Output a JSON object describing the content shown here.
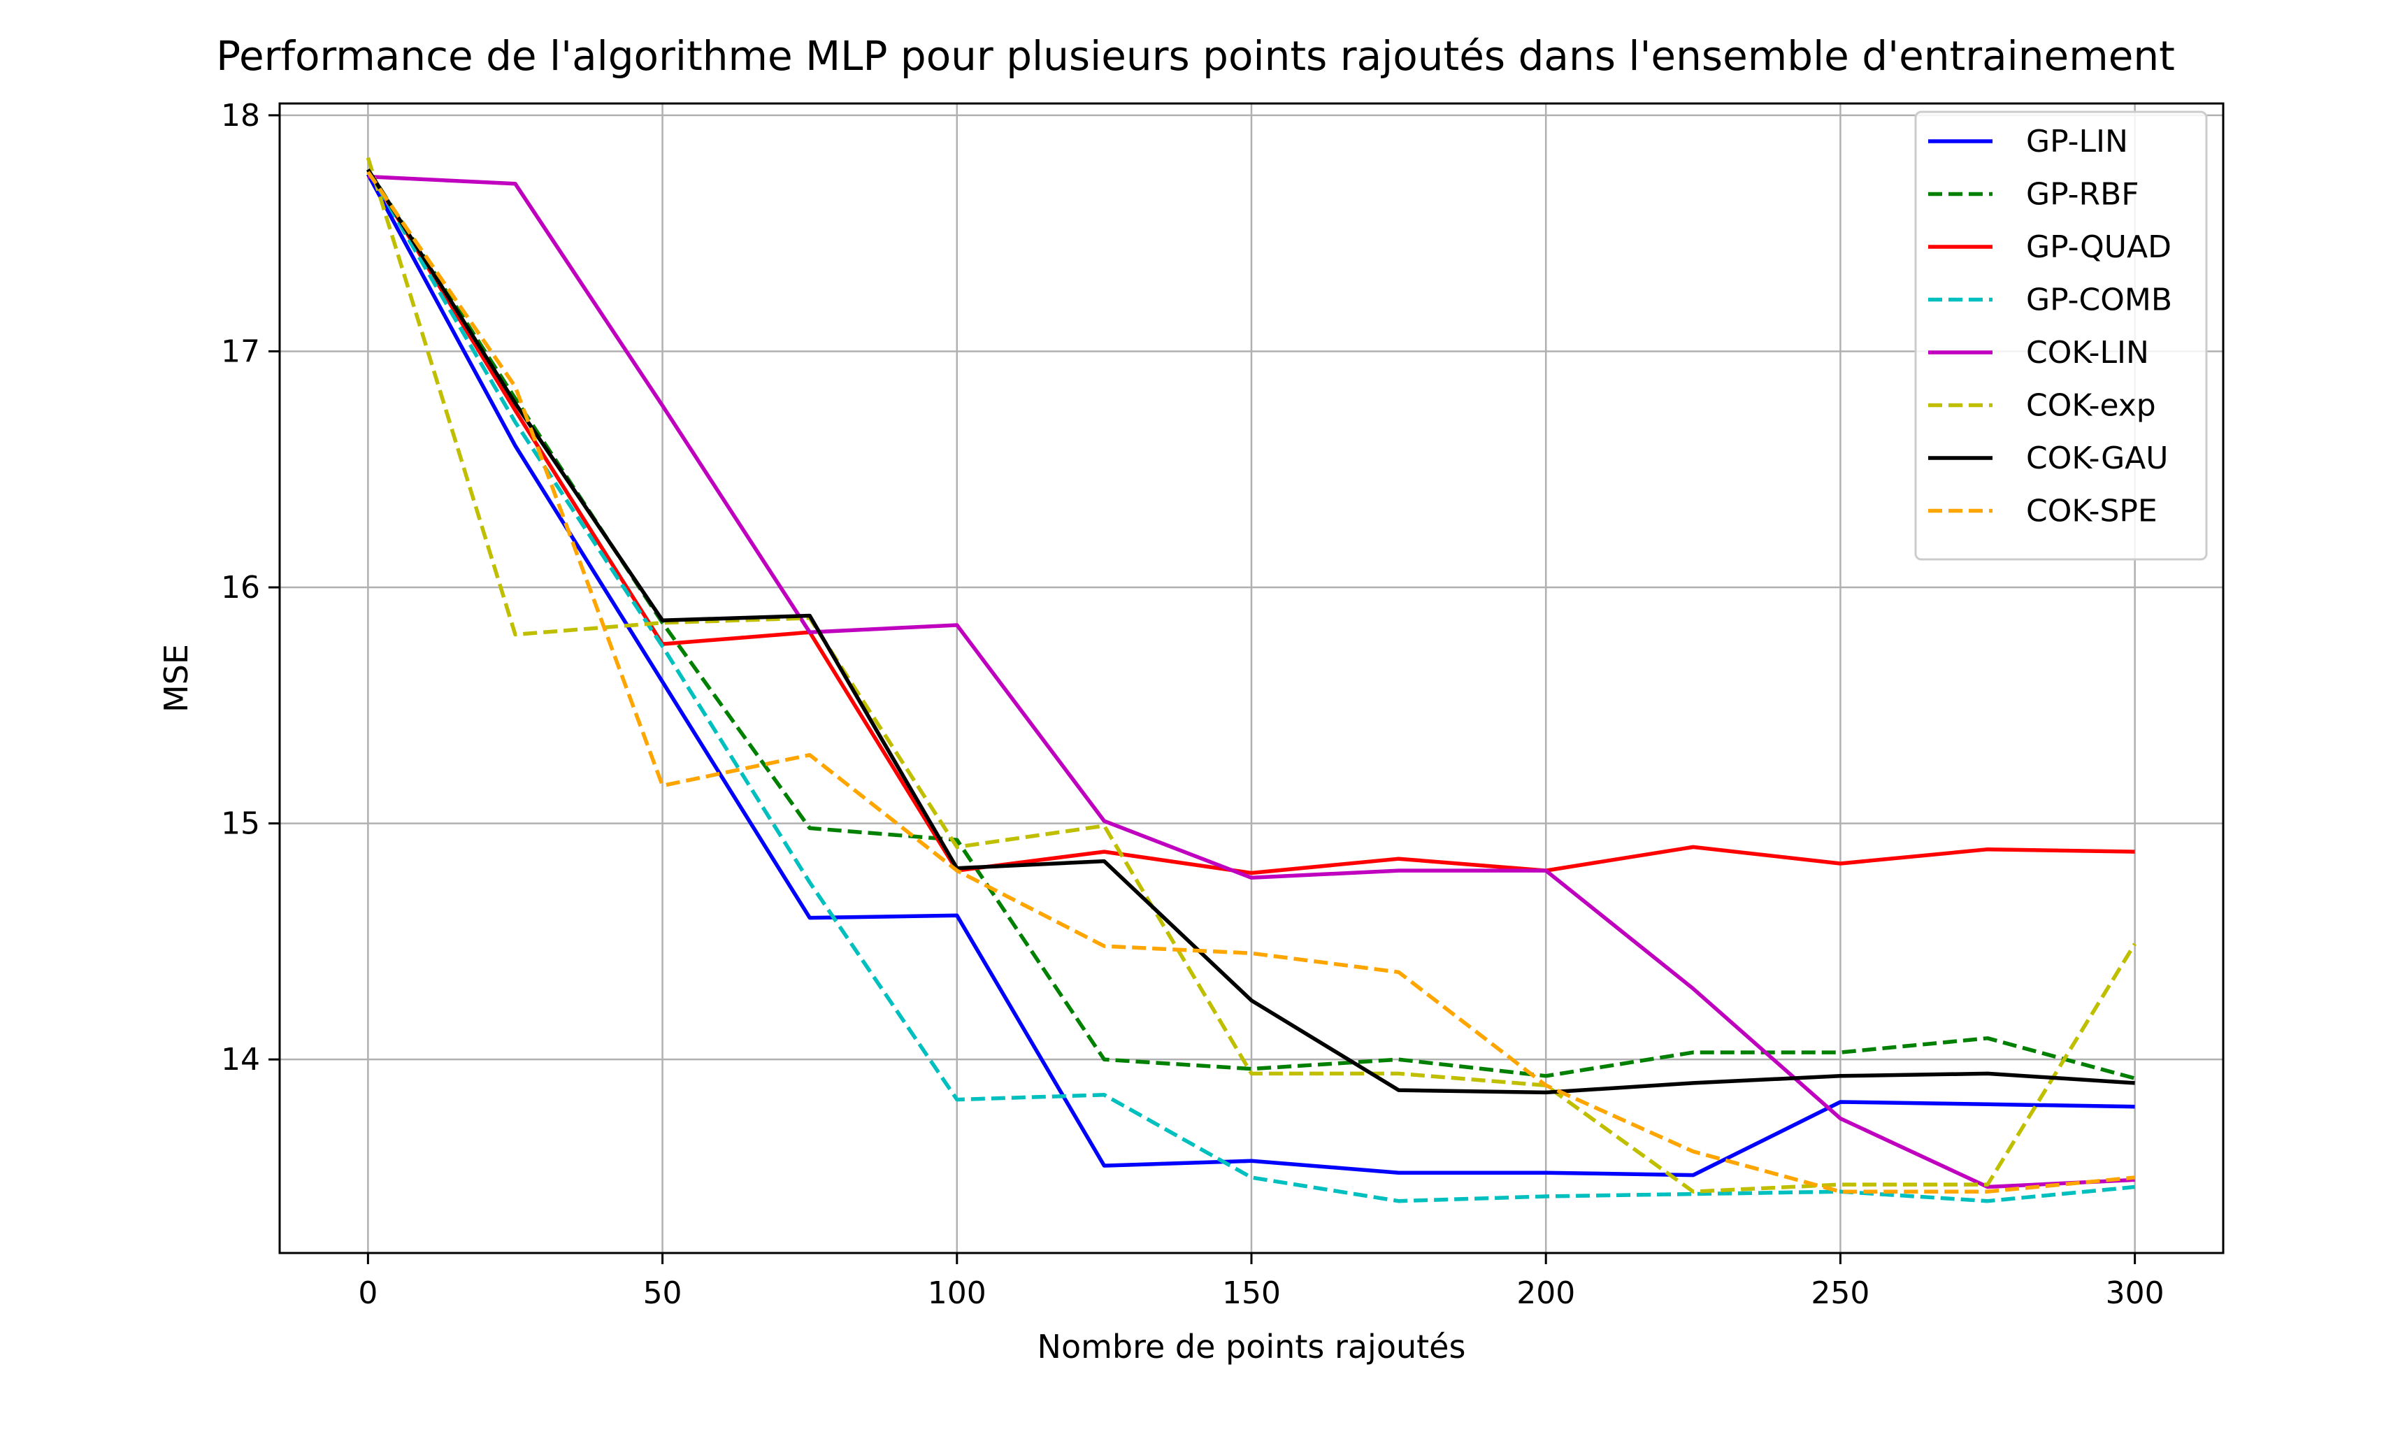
{
  "chart_data": {
    "type": "line",
    "title": "Performance de l'algorithme MLP pour plusieurs points rajoutés dans l'ensemble d'entrainement",
    "xlabel": "Nombre de points rajoutés",
    "ylabel": "MSE",
    "xlim": [
      -15,
      315
    ],
    "ylim": [
      13.18,
      18.05
    ],
    "xticks": [
      0,
      50,
      100,
      150,
      200,
      250,
      300
    ],
    "yticks": [
      14,
      15,
      16,
      17,
      18
    ],
    "grid": true,
    "legend_position": "top-right",
    "x": [
      0,
      25,
      50,
      75,
      100,
      125,
      150,
      175,
      200,
      225,
      250,
      275,
      300
    ],
    "series": [
      {
        "name": "GP-LIN",
        "color": "#0000ff",
        "dash": "solid",
        "values": [
          17.75,
          16.6,
          15.6,
          14.6,
          14.61,
          13.55,
          13.57,
          13.52,
          13.52,
          13.51,
          13.82,
          13.81,
          13.8
        ]
      },
      {
        "name": "GP-RBF",
        "color": "#008000",
        "dash": "dashed",
        "values": [
          17.77,
          16.8,
          15.85,
          14.98,
          14.93,
          14.0,
          13.96,
          14.0,
          13.93,
          14.03,
          14.03,
          14.09,
          13.92
        ]
      },
      {
        "name": "GP-QUAD",
        "color": "#ff0000",
        "dash": "solid",
        "values": [
          17.77,
          16.75,
          15.76,
          15.81,
          14.8,
          14.88,
          14.79,
          14.85,
          14.8,
          14.9,
          14.83,
          14.89,
          14.88
        ]
      },
      {
        "name": "GP-COMB",
        "color": "#00bfbf",
        "dash": "dashed",
        "values": [
          17.77,
          16.7,
          15.75,
          14.75,
          13.83,
          13.85,
          13.5,
          13.4,
          13.42,
          13.43,
          13.44,
          13.4,
          13.46
        ]
      },
      {
        "name": "COK-LIN",
        "color": "#bf00bf",
        "dash": "solid",
        "values": [
          17.74,
          17.71,
          16.77,
          15.81,
          15.84,
          15.01,
          14.77,
          14.8,
          14.8,
          14.3,
          13.75,
          13.46,
          13.49
        ]
      },
      {
        "name": "COK-exp",
        "color": "#bfbf00",
        "dash": "dashed",
        "values": [
          17.82,
          15.8,
          15.85,
          15.87,
          14.9,
          14.99,
          13.94,
          13.94,
          13.89,
          13.44,
          13.47,
          13.47,
          14.49
        ]
      },
      {
        "name": "COK-GAU",
        "color": "#000000",
        "dash": "solid",
        "values": [
          17.77,
          16.78,
          15.86,
          15.88,
          14.81,
          14.84,
          14.25,
          13.87,
          13.86,
          13.9,
          13.93,
          13.94,
          13.9
        ]
      },
      {
        "name": "COK-SPE",
        "color": "#ffa500",
        "dash": "dashed",
        "values": [
          17.76,
          16.85,
          15.16,
          15.29,
          14.8,
          14.48,
          14.45,
          14.37,
          13.89,
          13.61,
          13.44,
          13.44,
          13.5
        ]
      }
    ]
  }
}
